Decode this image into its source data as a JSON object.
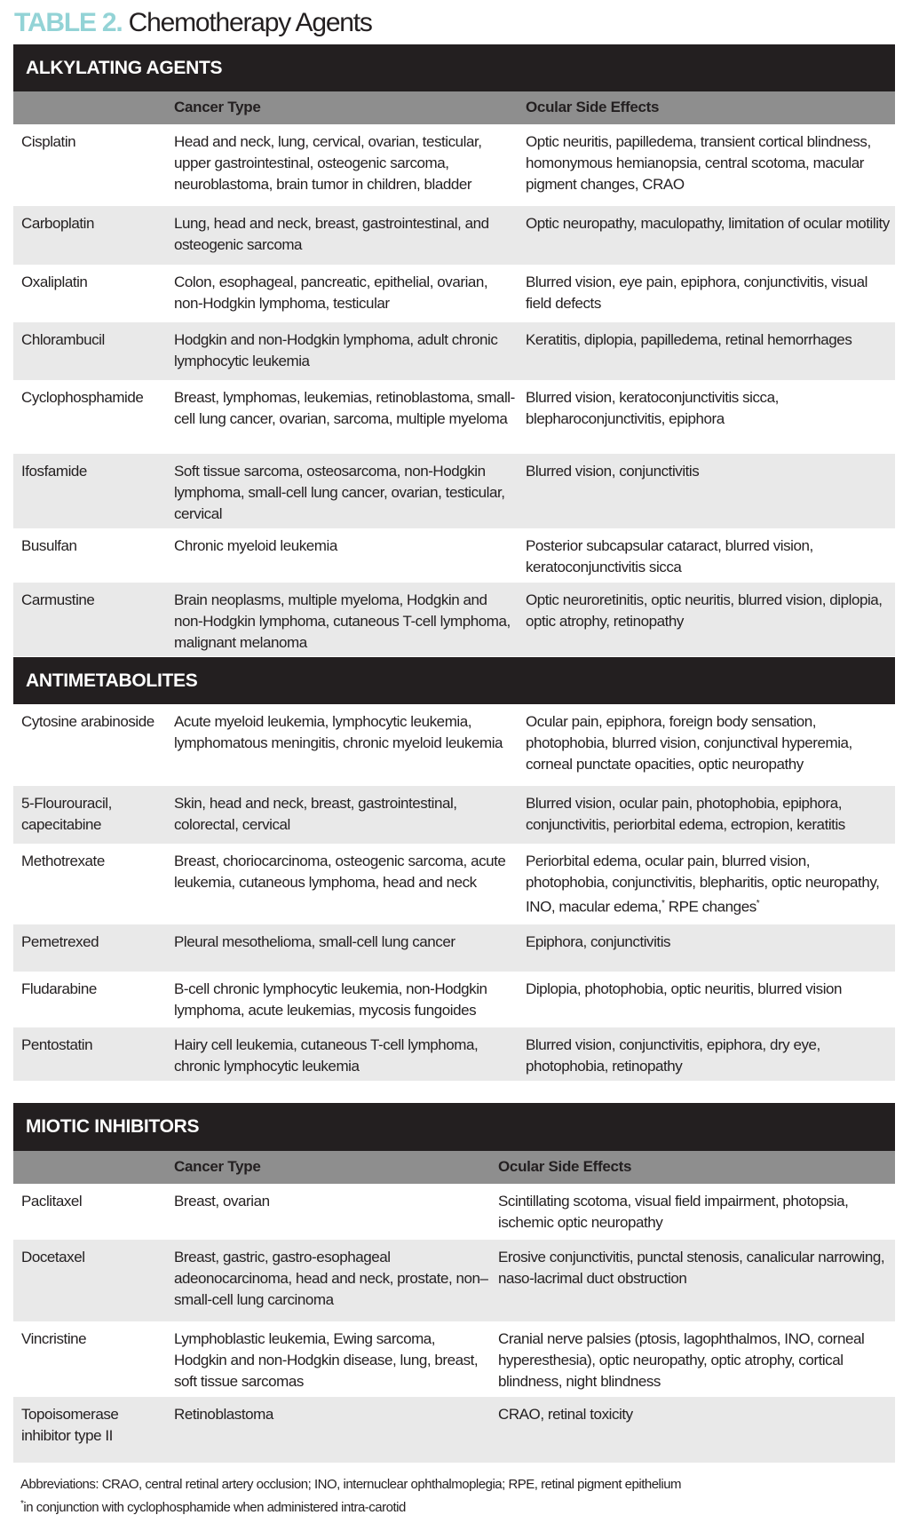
{
  "title": {
    "label": "TABLE 2.",
    "text": "Chemotherapy Agents"
  },
  "colors": {
    "section_header": "#231f20",
    "column_header": "#8e8e8e",
    "stripe": "#e9e9e9",
    "title_label": "#93d3d6"
  },
  "sections": [
    {
      "name": "ALKYLATING AGENTS",
      "columns": [
        "",
        "Cancer Type",
        "Ocular Side Effects"
      ],
      "rows": [
        {
          "agent": "Cisplatin",
          "cancer": "Head and neck, lung, cervical, ovarian, testicular, upper gastrointestinal, osteogenic sarcoma, neuroblastoma, brain tumor in children, bladder",
          "effects": "Optic neuritis, papilledema, transient cortical blindness, homonymous hemianopsia, central scotoma, macular pigment changes, CRAO"
        },
        {
          "agent": "Carboplatin",
          "cancer": "Lung, head and neck, breast, gastrointestinal, and osteogenic sarcoma",
          "effects": "Optic neuropathy, maculopathy, limitation of ocular motility"
        },
        {
          "agent": "Oxaliplatin",
          "cancer": "Colon, esophageal, pancreatic, epithelial, ovarian, non-Hodgkin lymphoma, testicular",
          "effects": "Blurred vision, eye pain, epiphora, conjunctivitis, visual field defects"
        },
        {
          "agent": "Chlorambucil",
          "cancer": "Hodgkin and non-Hodgkin lymphoma, adult chronic lymphocytic leukemia",
          "effects": "Keratitis, diplopia, papilledema, retinal hemorrhages"
        },
        {
          "agent": "Cyclophosphamide",
          "cancer": "Breast, lymphomas, leukemias, retinoblastoma, small-cell lung cancer, ovarian, sarcoma, multiple myeloma",
          "effects": "Blurred vision, keratoconjunctivitis sicca, blepharoconjunctivitis, epiphora"
        },
        {
          "agent": "Ifosfamide",
          "cancer": "Soft tissue sarcoma, osteosarcoma, non-Hodgkin lymphoma, small-cell lung cancer, ovarian, testicular, cervical",
          "effects": "Blurred vision, conjunctivitis"
        },
        {
          "agent": "Busulfan",
          "cancer": "Chronic myeloid leukemia",
          "effects": "Posterior subcapsular cataract, blurred vision, keratoconjunctivitis sicca"
        },
        {
          "agent": "Carmustine",
          "cancer": "Brain neoplasms, multiple myeloma, Hodgkin and non-Hodgkin lymphoma, cutaneous T-cell lymphoma, malignant melanoma",
          "effects": "Optic neuroretinitis, optic neuritis, blurred vision, diplopia, optic atrophy, retinopathy"
        }
      ]
    },
    {
      "name": "ANTIMETABOLITES",
      "rows": [
        {
          "agent": "Cytosine arabinoside",
          "cancer": "Acute myeloid leukemia, lymphocytic leukemia, lymphomatous meningitis, chronic myeloid leukemia",
          "effects": "Ocular pain, epiphora, foreign body sensation, photophobia, blurred vision, conjunctival hyperemia, corneal punctate opacities, optic neuropathy"
        },
        {
          "agent": "5-Flourouracil, capecitabine",
          "cancer": "Skin, head and neck, breast, gastrointestinal, colorectal, cervical",
          "effects": "Blurred vision, ocular pain, photophobia, epiphora, conjunctivitis, periorbital edema, ectropion, keratitis"
        },
        {
          "agent": "Methotrexate",
          "cancer": "Breast, choriocarcinoma, osteogenic sarcoma, acute leukemia, cutaneous lymphoma, head and neck",
          "effects": "Periorbital edema, ocular pain, blurred vision, photophobia, conjunctivitis, blepharitis, optic neuropathy, INO, macular edema,",
          "effects_sup1": "*",
          "effects_tail": " RPE changes",
          "effects_sup2": "*"
        },
        {
          "agent": "Pemetrexed",
          "cancer": "Pleural mesothelioma, small-cell lung cancer",
          "effects": "Epiphora, conjunctivitis"
        },
        {
          "agent": "Fludarabine",
          "cancer": "B-cell chronic lymphocytic leukemia, non-Hodgkin lymphoma, acute leukemias, mycosis fungoides",
          "effects": "Diplopia, photophobia, optic neuritis, blurred vision"
        },
        {
          "agent": "Pentostatin",
          "cancer": "Hairy cell leukemia, cutaneous T-cell lymphoma, chronic lymphocytic leukemia",
          "effects": "Blurred vision, conjunctivitis, epiphora, dry eye, photophobia, retinopathy"
        }
      ]
    },
    {
      "name": "MIOTIC INHIBITORS",
      "columns": [
        "",
        "Cancer Type",
        "Ocular Side Effects"
      ],
      "rows": [
        {
          "agent": "Paclitaxel",
          "cancer": "Breast, ovarian",
          "effects": "Scintillating scotoma, visual field impairment, photopsia, ischemic optic neuropathy"
        },
        {
          "agent": "Docetaxel",
          "cancer": "Breast, gastric, gastro-esophageal adeonocarcinoma, head and neck, prostate, non–small-cell lung carcinoma",
          "effects": "Erosive conjunctivitis, punctal stenosis, canalicular narrowing, naso-lacrimal duct obstruction"
        },
        {
          "agent": "Vincristine",
          "cancer": "Lymphoblastic leukemia, Ewing sarcoma, Hodgkin and non-Hodgkin disease, lung, breast, soft tissue sarcomas",
          "effects": "Cranial nerve palsies (ptosis, lagophthalmos, INO, corneal hyperesthesia), optic neuropathy, optic atrophy, cortical blindness, night blindness"
        },
        {
          "agent": "Topoisomerase inhibitor type II",
          "cancer": "Retinoblastoma",
          "effects": "CRAO, retinal toxicity"
        }
      ]
    }
  ],
  "footer": {
    "abbreviations": "Abbreviations: CRAO, central retinal artery occlusion; INO, internuclear ophthalmoplegia; RPE, retinal pigment epithelium",
    "note_mark": "*",
    "note": "in conjunction with cyclophosphamide when administered intra-carotid"
  }
}
